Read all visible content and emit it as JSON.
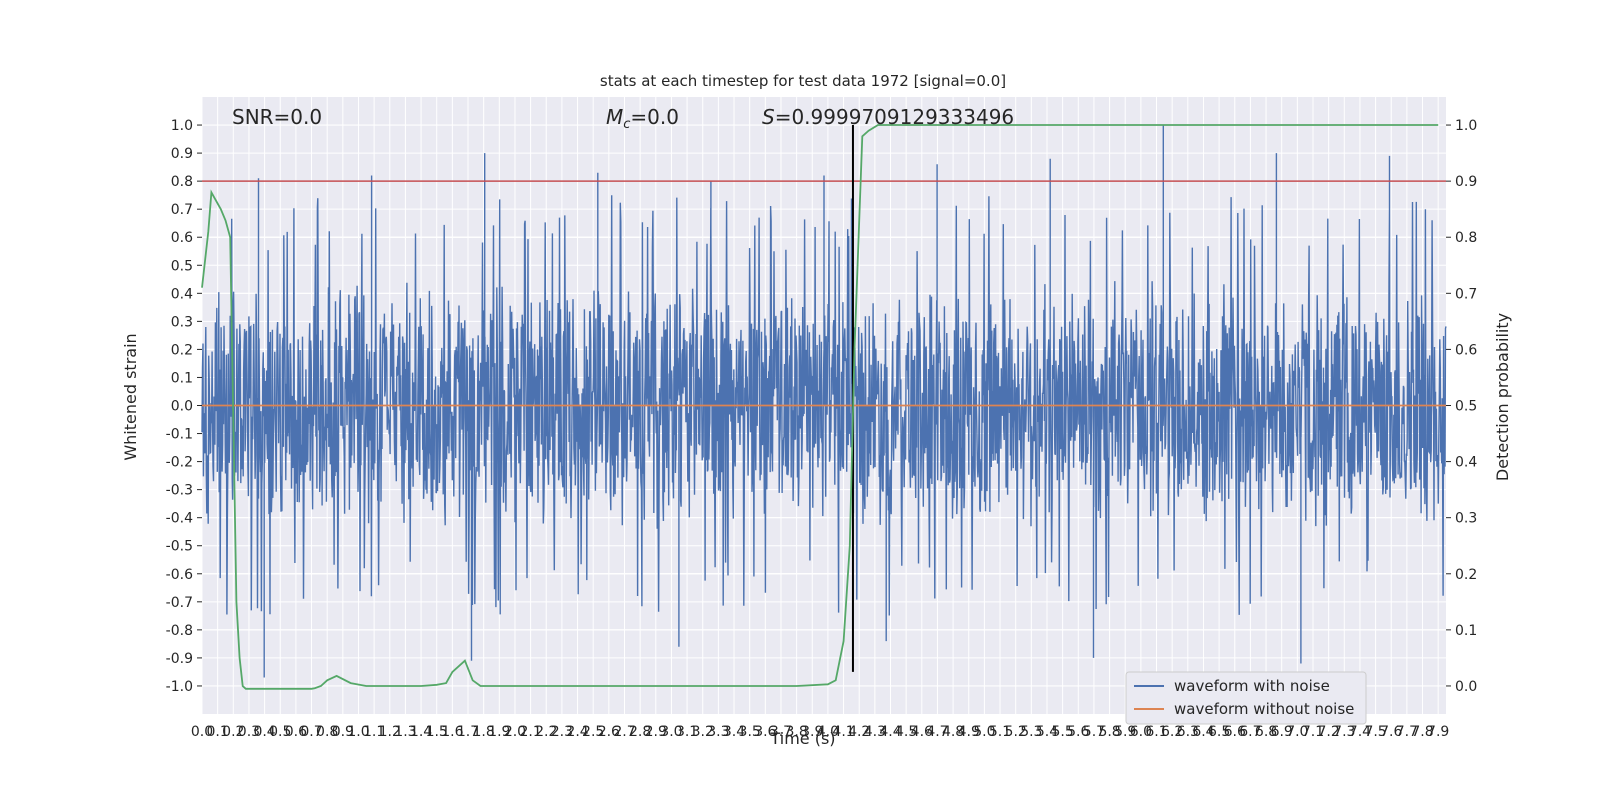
{
  "chart_data": {
    "type": "line",
    "title": "stats at each timestep for test data 1972 [signal=0.0]",
    "xlabel": "Time (s)",
    "ylabel": "Whitened strain",
    "y2label": "Detection probability",
    "xlim": [
      0.0,
      7.95
    ],
    "ylim": [
      -1.1,
      1.1
    ],
    "y2lim": [
      -0.05,
      1.05
    ],
    "x_tick_step": 0.1,
    "y_ticks": [
      1.0,
      0.9,
      0.8,
      0.7,
      0.6,
      0.5,
      0.4,
      0.3,
      0.2,
      0.1,
      0.0,
      -0.1,
      -0.2,
      -0.3,
      -0.4,
      -0.5,
      -0.6,
      -0.7,
      -0.8,
      -0.9,
      -1.0
    ],
    "y_tick_labels": [
      "1.0",
      "0.9",
      "0.8",
      "0.7",
      "0.6",
      "0.5",
      "0.4",
      "0.3",
      "0.2",
      "0.1",
      "0.0",
      "-0.1",
      "-0.2",
      "-0.3",
      "-0.4",
      "-0.5",
      "-0.6",
      "-0.7",
      "-0.8",
      "-0.9",
      "-1.0"
    ],
    "y2_ticks": [
      1.0,
      0.9,
      0.8,
      0.7,
      0.6,
      0.5,
      0.4,
      0.3,
      0.2,
      0.1,
      0.0
    ],
    "y2_tick_labels": [
      "1.0",
      "0.9",
      "0.8",
      "0.7",
      "0.6",
      "0.5",
      "0.4",
      "0.3",
      "0.2",
      "0.1",
      "0.0"
    ],
    "annotations": {
      "snr": "SNR=0.0",
      "mc_prefix": "M",
      "mc_sub": "c",
      "mc_value": "=0.0",
      "s_prefix": "S",
      "s_value": "=0.9999709129333496"
    },
    "legend": {
      "placement": "lower-right",
      "entries": [
        "waveform with noise",
        "waveform without noise"
      ]
    },
    "threshold": {
      "y": 0.8,
      "color": "#c44e52"
    },
    "vertical_marker": {
      "x": 4.16,
      "color": "#000000"
    },
    "series": [
      {
        "name": "waveform with noise",
        "color": "#4c72b0",
        "kind": "noise",
        "typical_amplitude": 0.45,
        "peaks_max": [
          0.81,
          0.82,
          0.9,
          0.83,
          0.8,
          0.82,
          0.86,
          0.88,
          1.0,
          0.9,
          0.89
        ],
        "peaks_min": [
          -0.97,
          -0.91,
          -0.86,
          -0.84,
          -0.9,
          -0.92
        ]
      },
      {
        "name": "waveform without noise",
        "color": "#dd8452",
        "kind": "flat",
        "value": 0.0
      },
      {
        "name": "detection probability",
        "color": "#55a868",
        "axis": "right",
        "x": [
          0.0,
          0.04,
          0.06,
          0.12,
          0.15,
          0.18,
          0.22,
          0.24,
          0.26,
          0.28,
          0.3,
          0.36,
          0.45,
          0.6,
          0.7,
          0.72,
          0.76,
          0.8,
          0.86,
          0.95,
          1.05,
          1.2,
          1.4,
          1.5,
          1.56,
          1.6,
          1.68,
          1.73,
          1.78,
          1.84,
          2.0,
          2.5,
          3.0,
          3.5,
          3.8,
          4.0,
          4.05,
          4.1,
          4.14,
          4.17,
          4.22,
          4.26,
          4.32,
          4.5,
          6.0,
          7.9
        ],
        "y": [
          0.71,
          0.81,
          0.88,
          0.85,
          0.83,
          0.8,
          0.15,
          0.05,
          0.0,
          -0.005,
          -0.005,
          -0.005,
          -0.005,
          -0.005,
          -0.005,
          -0.004,
          0.0,
          0.01,
          0.018,
          0.005,
          0.0,
          0.0,
          0.0,
          0.002,
          0.005,
          0.025,
          0.045,
          0.01,
          0.0,
          0.0,
          0.0,
          0.0,
          0.0,
          0.0,
          0.0,
          0.003,
          0.01,
          0.08,
          0.25,
          0.6,
          0.98,
          0.99,
          1.0,
          1.0,
          1.0,
          1.0
        ]
      }
    ]
  }
}
